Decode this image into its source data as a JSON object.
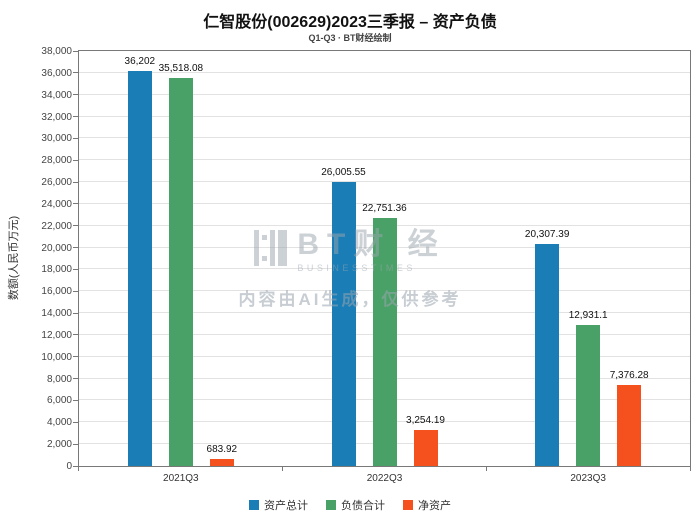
{
  "title": "仁智股份(002629)2023三季报 – 资产负债",
  "subtitle": "Q1-Q3 · BT财经绘制",
  "watermark": {
    "brand": "BT财 经",
    "brand_sub": "BUSINESSTIMES",
    "notice": "内容由AI生成，仅供参考"
  },
  "chart_data": {
    "type": "bar",
    "title": "仁智股份(002629)2023三季报 – 资产负债",
    "subtitle": "Q1-Q3 · BT财经绘制",
    "categories": [
      "2021Q3",
      "2022Q3",
      "2023Q3"
    ],
    "series": [
      {
        "name": "资产总计",
        "color": "#1a7db6",
        "values": [
          36202,
          26005.55,
          20307.39
        ],
        "labels": [
          "36,202",
          "26,005.55",
          "20,307.39"
        ]
      },
      {
        "name": "负债合计",
        "color": "#4aa168",
        "values": [
          35518.08,
          22751.36,
          12931.1
        ],
        "labels": [
          "35,518.08",
          "22,751.36",
          "12,931.1"
        ]
      },
      {
        "name": "净资产",
        "color": "#f4511e",
        "values": [
          683.92,
          3254.19,
          7376.28
        ],
        "labels": [
          "683.92",
          "3,254.19",
          "7,376.28"
        ]
      }
    ],
    "xlabel": "",
    "ylabel": "数额(人民币万元)",
    "ylim": [
      0,
      38000
    ],
    "ytick_step": 2000,
    "grid": true,
    "legend_position": "bottom"
  }
}
